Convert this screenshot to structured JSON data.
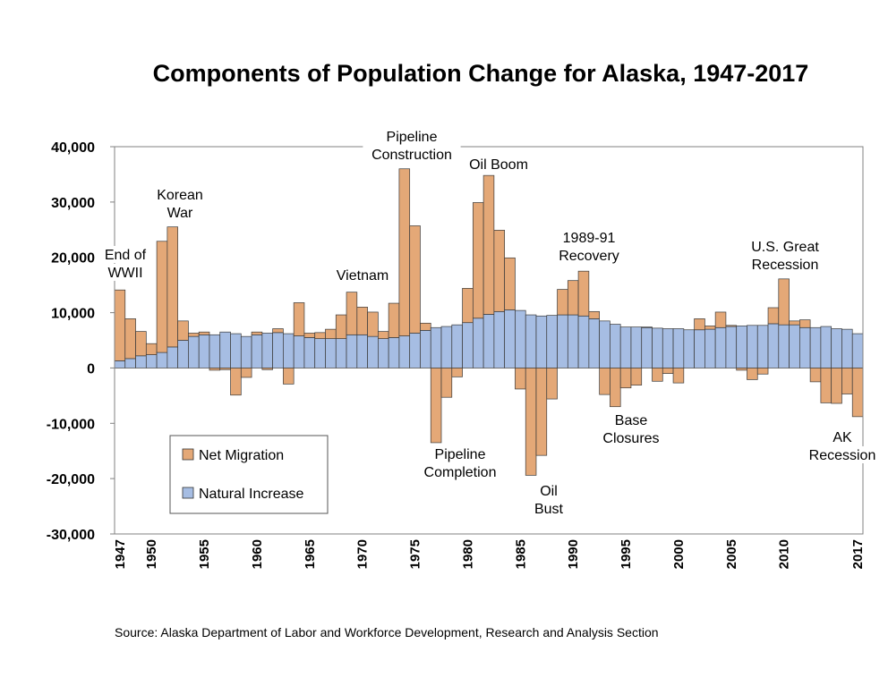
{
  "chart_data": {
    "type": "bar",
    "stacked": true,
    "title": "Components of Population Change for Alaska, 1947-2017",
    "source": "Source: Alaska Department of Labor and Workforce Development, Research and Analysis Section",
    "ylim": [
      -30000,
      40000
    ],
    "y_ticks": [
      "40,000",
      "30,000",
      "20,000",
      "10,000",
      "0",
      "-10,000",
      "-20,000",
      "-30,000"
    ],
    "y_tick_values": [
      40000,
      30000,
      20000,
      10000,
      0,
      -10000,
      -20000,
      -30000
    ],
    "x_tick_labels": [
      "1947",
      "1950",
      "1955",
      "1960",
      "1965",
      "1970",
      "1975",
      "1980",
      "1985",
      "1990",
      "1995",
      "2000",
      "2005",
      "2010",
      "2017"
    ],
    "legend_position": "bottom-left",
    "years": [
      1947,
      1948,
      1949,
      1950,
      1951,
      1952,
      1953,
      1954,
      1955,
      1956,
      1957,
      1958,
      1959,
      1960,
      1961,
      1962,
      1963,
      1964,
      1965,
      1966,
      1967,
      1968,
      1969,
      1970,
      1971,
      1972,
      1973,
      1974,
      1975,
      1976,
      1977,
      1978,
      1979,
      1980,
      1981,
      1982,
      1983,
      1984,
      1985,
      1986,
      1987,
      1988,
      1989,
      1990,
      1991,
      1992,
      1993,
      1994,
      1995,
      1996,
      1997,
      1998,
      1999,
      2000,
      2001,
      2002,
      2003,
      2004,
      2005,
      2006,
      2007,
      2008,
      2009,
      2010,
      2011,
      2012,
      2013,
      2014,
      2015,
      2016,
      2017
    ],
    "series": [
      {
        "name": "Natural Increase",
        "color": "#a6bde3",
        "values": [
          1300,
          1700,
          2200,
          2400,
          2800,
          3800,
          5000,
          5700,
          6000,
          6000,
          6500,
          6200,
          5700,
          6000,
          6300,
          6400,
          6200,
          5800,
          5500,
          5300,
          5300,
          5300,
          6000,
          6000,
          5700,
          5300,
          5500,
          5800,
          6300,
          6800,
          7300,
          7500,
          7800,
          8200,
          9000,
          9700,
          10200,
          10500,
          10400,
          9600,
          9400,
          9500,
          9600,
          9600,
          9400,
          8900,
          8500,
          7900,
          7400,
          7400,
          7300,
          7200,
          7100,
          7100,
          6900,
          6900,
          7000,
          7300,
          7500,
          7600,
          7700,
          7700,
          8000,
          7800,
          7800,
          7300,
          7300,
          7500,
          7100,
          7000,
          6200
        ]
      },
      {
        "name": "Net Migration",
        "color": "#e4a877",
        "values": [
          12800,
          7200,
          4400,
          2000,
          20100,
          21700,
          3500,
          600,
          500,
          -400,
          -300,
          -4900,
          -1700,
          500,
          -300,
          700,
          -2900,
          6000,
          800,
          1100,
          1700,
          4300,
          7700,
          5000,
          4400,
          1300,
          6200,
          30200,
          19400,
          1300,
          -13500,
          -5300,
          -1600,
          6200,
          20900,
          25100,
          14700,
          9400,
          -3800,
          -19400,
          -15800,
          -5600,
          4600,
          6200,
          8100,
          1300,
          -4800,
          -7000,
          -3600,
          -3100,
          100,
          -2400,
          -1000,
          -2700,
          0,
          2000,
          600,
          2800,
          200,
          -400,
          -2100,
          -1100,
          2900,
          8300,
          700,
          1400,
          -2500,
          -6300,
          -6400,
          -4700,
          -8800
        ]
      }
    ],
    "annotations": [
      {
        "lines": [
          "End of",
          "WWII"
        ]
      },
      {
        "lines": [
          "Korean",
          "War"
        ]
      },
      {
        "lines": [
          "Vietnam"
        ]
      },
      {
        "lines": [
          "Pipeline",
          "Construction"
        ]
      },
      {
        "lines": [
          "Oil Boom"
        ]
      },
      {
        "lines": [
          "Pipeline",
          "Completion"
        ]
      },
      {
        "lines": [
          "Oil",
          "Bust"
        ]
      },
      {
        "lines": [
          "1989-91",
          "Recovery"
        ]
      },
      {
        "lines": [
          "Base",
          "Closures"
        ]
      },
      {
        "lines": [
          "U.S. Great",
          "Recession"
        ]
      },
      {
        "lines": [
          "AK",
          "Recession"
        ]
      }
    ]
  }
}
